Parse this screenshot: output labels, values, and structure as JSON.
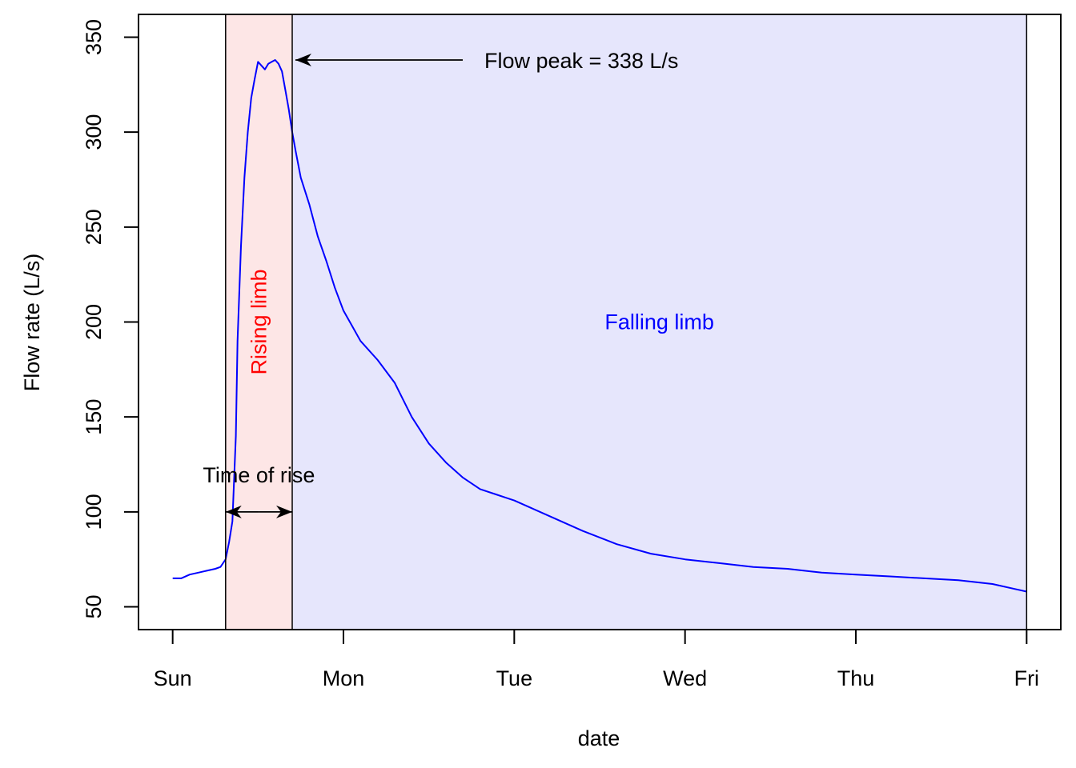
{
  "chart_data": {
    "type": "line",
    "xlabel": "date",
    "ylabel": "Flow rate (L/s)",
    "x_unit": "days (Sun = 0)",
    "xlim": [
      -0.2,
      5.2
    ],
    "ylim": [
      38,
      362
    ],
    "x_ticks": [
      {
        "value": 0,
        "label": "Sun"
      },
      {
        "value": 1,
        "label": "Mon"
      },
      {
        "value": 2,
        "label": "Tue"
      },
      {
        "value": 3,
        "label": "Wed"
      },
      {
        "value": 4,
        "label": "Thu"
      },
      {
        "value": 5,
        "label": "Fri"
      }
    ],
    "y_ticks": [
      50,
      100,
      150,
      200,
      250,
      300,
      350
    ],
    "series": [
      {
        "color": "#0000ff",
        "x": [
          0.0,
          0.05,
          0.1,
          0.15,
          0.2,
          0.25,
          0.28,
          0.31,
          0.33,
          0.35,
          0.37,
          0.38,
          0.4,
          0.42,
          0.44,
          0.46,
          0.48,
          0.5,
          0.52,
          0.54,
          0.56,
          0.58,
          0.6,
          0.62,
          0.64,
          0.66,
          0.68,
          0.7,
          0.72,
          0.75,
          0.8,
          0.85,
          0.9,
          0.95,
          1.0,
          1.05,
          1.1,
          1.2,
          1.3,
          1.4,
          1.5,
          1.6,
          1.7,
          1.8,
          1.9,
          2.0,
          2.1,
          2.2,
          2.4,
          2.6,
          2.8,
          3.0,
          3.2,
          3.4,
          3.6,
          3.8,
          4.0,
          4.2,
          4.4,
          4.6,
          4.8,
          5.0
        ],
        "y": [
          65,
          65,
          67,
          68,
          69,
          70,
          71,
          75,
          84,
          95,
          140,
          190,
          240,
          276,
          300,
          318,
          328,
          337,
          335,
          333,
          336,
          337,
          338,
          336,
          332,
          322,
          312,
          300,
          290,
          276,
          262,
          245,
          232,
          218,
          206,
          198,
          190,
          180,
          168,
          150,
          136,
          126,
          118,
          112,
          109,
          106,
          102,
          98,
          90,
          83,
          78,
          75,
          73,
          71,
          70,
          68,
          67,
          66,
          65,
          64,
          62,
          58
        ]
      }
    ],
    "shaded_regions": [
      {
        "label": "Rising limb",
        "x": [
          0.31,
          0.7
        ],
        "fill": "#fde6e6",
        "label_color": "#ff0000",
        "label_y": 200
      },
      {
        "label": "Falling limb",
        "x": [
          0.7,
          5.0
        ],
        "fill": "#e6e6fc",
        "label_color": "#0000ff",
        "label_y": 200
      }
    ],
    "annotations": {
      "peak": {
        "text": "Flow peak = 338 L/s",
        "x": 0.7,
        "y": 338
      },
      "time_of_rise": {
        "text": "Time of rise",
        "x_start": 0.31,
        "x_end": 0.7,
        "y": 100
      }
    }
  }
}
